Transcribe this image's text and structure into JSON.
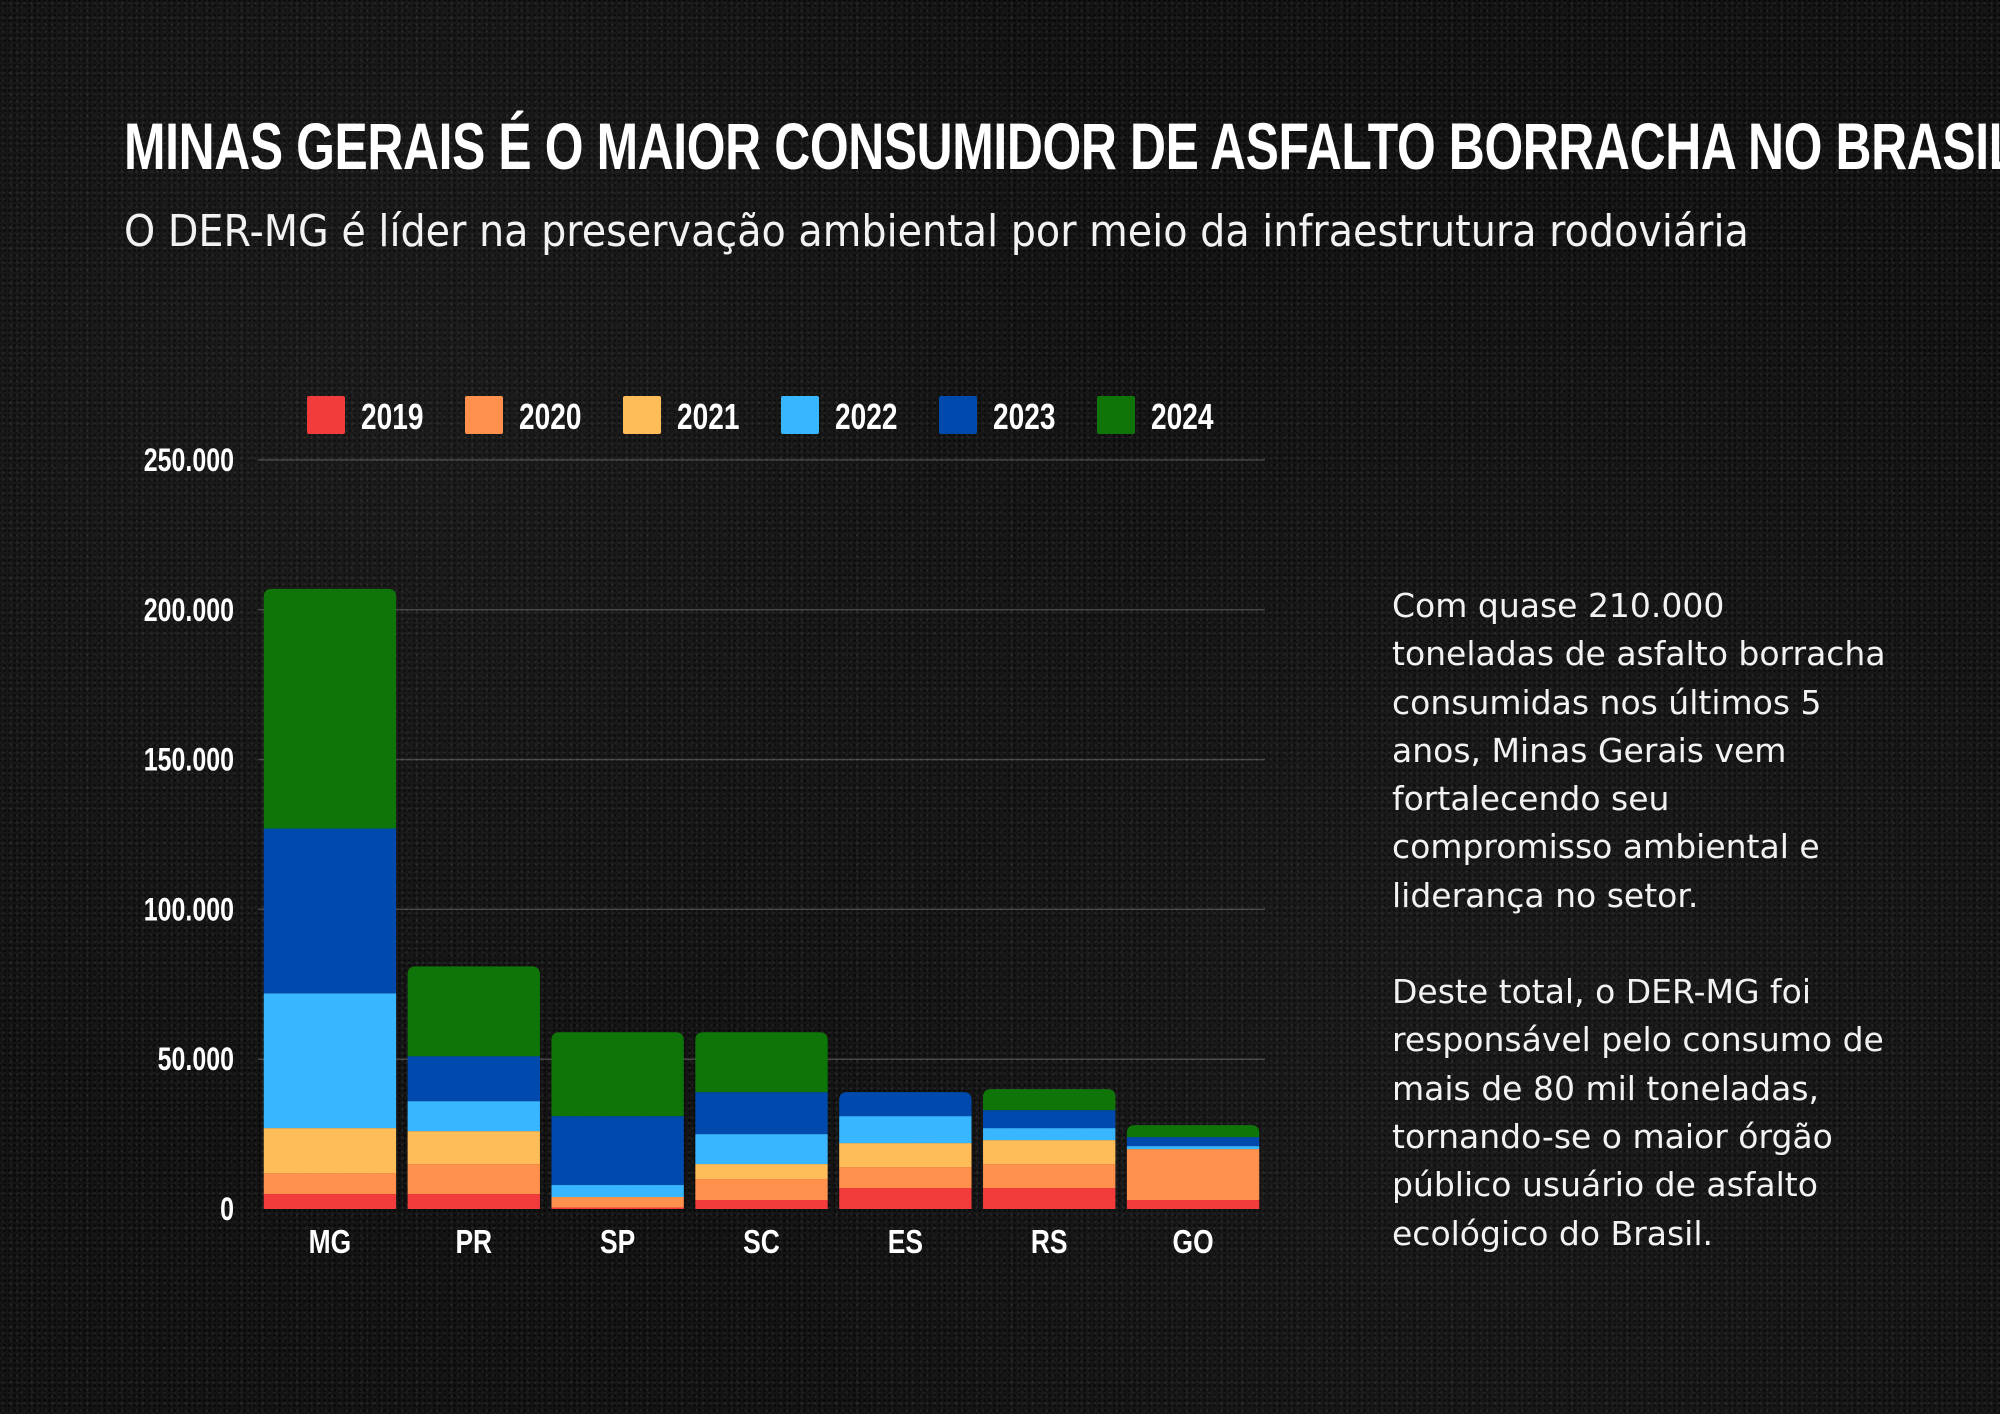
{
  "header": {
    "title": "MINAS GERAIS É O MAIOR CONSUMIDOR DE ASFALTO BORRACHA NO BRASIL",
    "subtitle": "O DER-MG é líder na preservação ambiental por meio da infraestrutura rodoviária"
  },
  "side_text": {
    "paragraph_1": "Com quase 210.000 toneladas de asfalto borracha consumidas nos últimos 5 anos, Minas Gerais vem fortalecendo seu compromisso ambiental e liderança no setor.",
    "paragraph_2": "Deste total, o DER-MG foi responsável pelo consumo de mais de 80 mil toneladas, tornando-se o maior órgão público usuário de asfalto ecológico do Brasil."
  },
  "chart_data": {
    "type": "bar",
    "stacked": true,
    "categories": [
      "MG",
      "PR",
      "SP",
      "SC",
      "ES",
      "RS",
      "GO"
    ],
    "series": [
      {
        "name": "2019",
        "color": "#f23b3b",
        "values": [
          5000,
          5000,
          500,
          3000,
          7000,
          7000,
          3000
        ]
      },
      {
        "name": "2020",
        "color": "#ff914d",
        "values": [
          7000,
          10000,
          3500,
          7000,
          7000,
          8000,
          17000
        ]
      },
      {
        "name": "2021",
        "color": "#ffbd59",
        "values": [
          15000,
          11000,
          0,
          5000,
          8000,
          8000,
          0
        ]
      },
      {
        "name": "2022",
        "color": "#38b6ff",
        "values": [
          45000,
          10000,
          4000,
          10000,
          9000,
          4000,
          1000
        ]
      },
      {
        "name": "2023",
        "color": "#004aad",
        "values": [
          55000,
          15000,
          23000,
          14000,
          8000,
          6000,
          3000
        ]
      },
      {
        "name": "2024",
        "color": "#0f7508",
        "values": [
          80000,
          30000,
          28000,
          20000,
          0,
          7000,
          4000
        ]
      }
    ],
    "y_ticks": [
      {
        "value": 0,
        "label": "0"
      },
      {
        "value": 50000,
        "label": "50.000"
      },
      {
        "value": 100000,
        "label": "100.000"
      },
      {
        "value": 150000,
        "label": "150.000"
      },
      {
        "value": 200000,
        "label": "200.000"
      },
      {
        "value": 250000,
        "label": "250.000"
      }
    ],
    "ylim": [
      0,
      250000
    ],
    "grid": true,
    "legend": "top",
    "xlabel": "",
    "ylabel": ""
  }
}
